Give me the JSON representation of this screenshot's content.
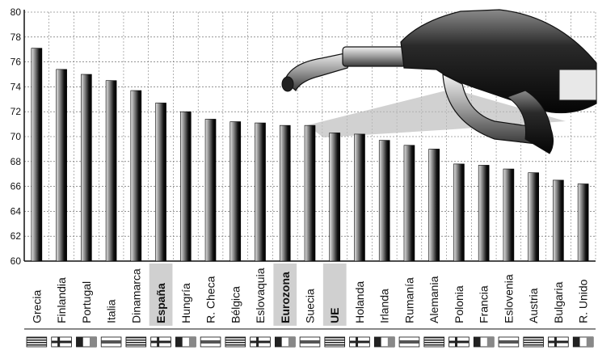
{
  "chart_data": {
    "type": "bar",
    "title": "",
    "xlabel": "",
    "ylabel": "",
    "ylim": [
      60,
      80
    ],
    "yticks": [
      60,
      62,
      64,
      66,
      68,
      70,
      72,
      74,
      76,
      78,
      80
    ],
    "grid": true,
    "categories": [
      "Grecia",
      "Finlandia",
      "Portugal",
      "Italia",
      "Dinamarca",
      "España",
      "Hungría",
      "R. Checa",
      "Bélgica",
      "Eslovaquia",
      "Eurozona",
      "Suecia",
      "UE",
      "Holanda",
      "Irlanda",
      "Rumanía",
      "Alemania",
      "Polonia",
      "Francia",
      "Eslovenia",
      "Austria",
      "Bulgaria",
      "R. Unido"
    ],
    "highlighted": [
      "España",
      "Eurozona",
      "UE"
    ],
    "values": [
      77.1,
      75.4,
      75.0,
      74.5,
      73.7,
      72.7,
      72.0,
      71.4,
      71.2,
      71.1,
      70.9,
      70.9,
      70.3,
      70.2,
      69.7,
      69.3,
      69.0,
      67.8,
      67.7,
      67.4,
      67.1,
      66.5,
      66.2
    ],
    "colors": {
      "bar_dark": "#0a0a0a",
      "bar_light": "#d8d8d8",
      "axis": "#111111"
    },
    "icons": [
      "fuel-nozzle-icon",
      "country-flag-icons"
    ]
  }
}
